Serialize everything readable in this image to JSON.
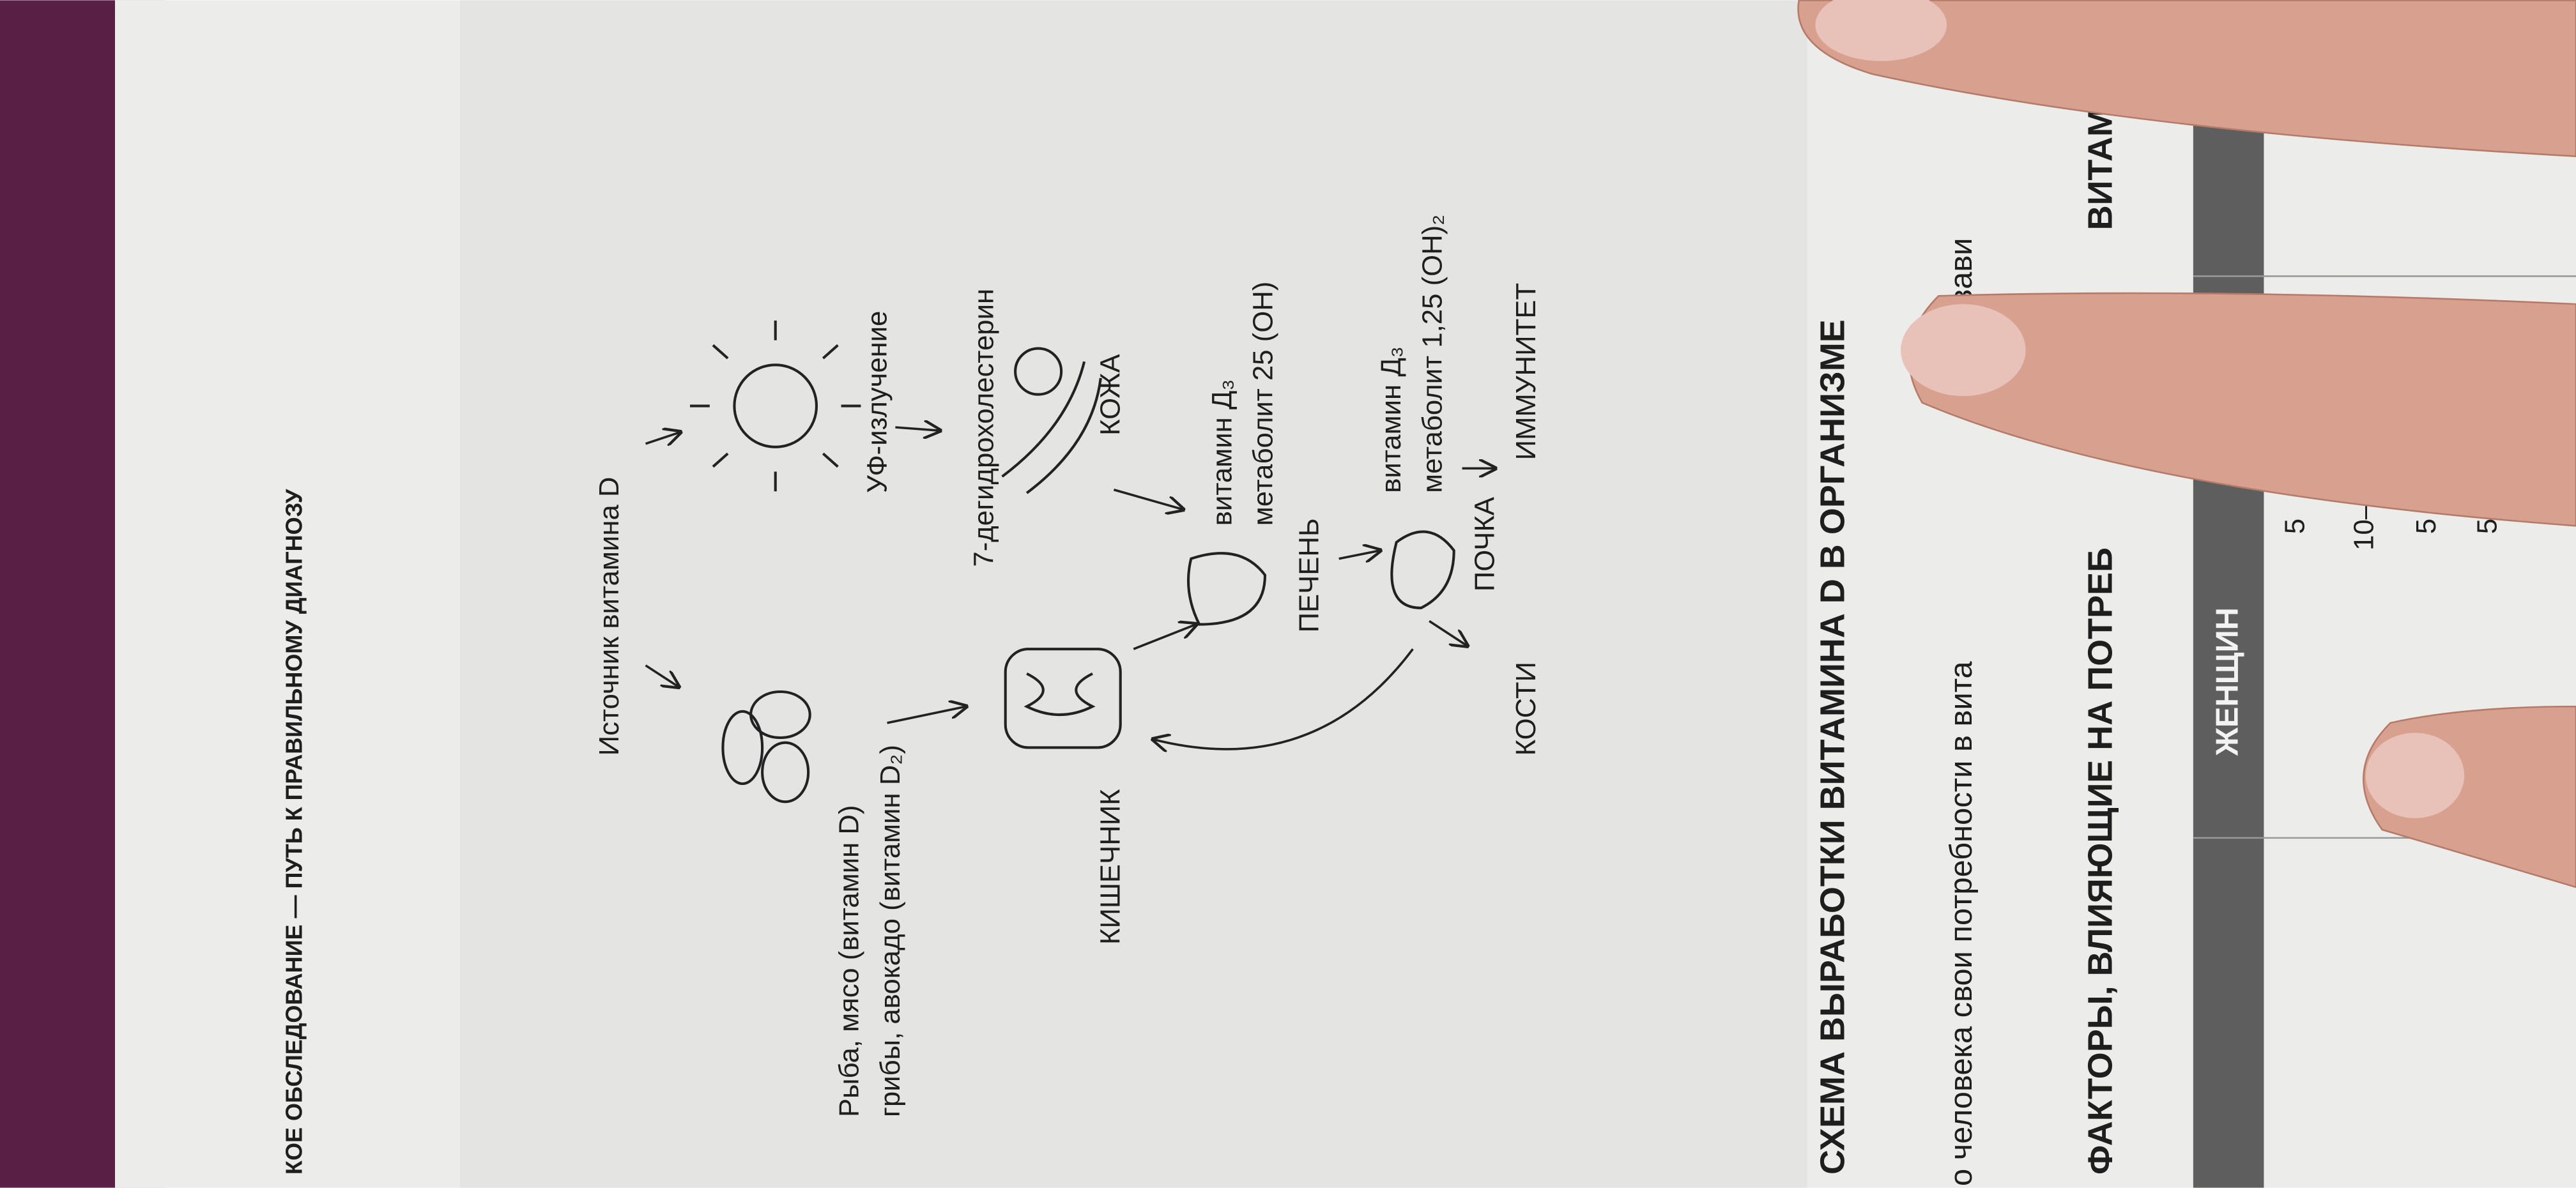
{
  "header": {
    "running_title": "КОЕ ОБСЛЕДОВАНИЕ — ПУТЬ К ПРАВИЛЬНОМУ ДИАГНОЗУ"
  },
  "diagram": {
    "source_title": "Источник витамина D",
    "food_line1": "Рыба, мясо (витамин D)",
    "food_line2": "грибы, авокадо (витамин D₂)",
    "uv": "УФ-излучение",
    "precursor": "7-дегидрохолестерин",
    "intestine": "КИШЕЧНИК",
    "skin": "КОЖА",
    "liver_metabolite_line1": "витамин Д₃",
    "liver_metabolite_line2": "метаболит 25 (OH)",
    "liver": "ПЕЧЕНЬ",
    "kidney_metabolite_line1": "витамин Д₃",
    "kidney_metabolite_line2": "метаболит 1,25 (OH)₂",
    "bones": "КОСТИ",
    "kidney": "ПОЧКА",
    "immunity": "ИММУНИТЕТ"
  },
  "section_title": "СХЕМА ВЫРАБОТКИ ВИТАМИНА D В ОРГАНИЗМЕ",
  "paragraph": {
    "part1": "о человека свои потребности в вита",
    "part2": "в зави"
  },
  "factors_title": {
    "part1": "ФАКТОРЫ, ВЛИЯЮЩИЕ НА ПОТРЕБ",
    "part2": "ВИТАМ"
  },
  "table": {
    "header": "ЖЕНЩИН",
    "rows": [
      "5",
      "10–1",
      "5",
      "5"
    ]
  }
}
